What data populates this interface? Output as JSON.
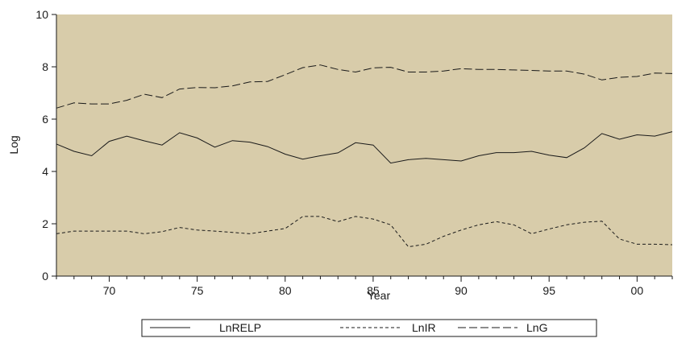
{
  "chart_data": {
    "type": "line",
    "xlabel": "Year",
    "ylabel": "Log",
    "xlim": [
      1967,
      2002
    ],
    "ylim": [
      0,
      10
    ],
    "x_ticks": [
      1970,
      1975,
      1980,
      1985,
      1990,
      1995,
      2000
    ],
    "x_tick_labels": [
      "70",
      "75",
      "80",
      "85",
      "90",
      "95",
      "00"
    ],
    "y_ticks": [
      0,
      2,
      4,
      6,
      8,
      10
    ],
    "y_tick_labels": [
      "0",
      "2",
      "4",
      "6",
      "8",
      "10"
    ],
    "plot_background": "#d8ccaa",
    "line_color": "#1a1a1a",
    "legend_position": "bottom",
    "x": [
      1967,
      1968,
      1969,
      1970,
      1971,
      1972,
      1973,
      1974,
      1975,
      1976,
      1977,
      1978,
      1979,
      1980,
      1981,
      1982,
      1983,
      1984,
      1985,
      1986,
      1987,
      1988,
      1989,
      1990,
      1991,
      1992,
      1993,
      1994,
      1995,
      1996,
      1997,
      1998,
      1999,
      2000,
      2001,
      2002
    ],
    "series": [
      {
        "name": "LnRELP",
        "line_style": "solid",
        "values": [
          5.05,
          4.77,
          4.6,
          5.15,
          5.35,
          5.17,
          5.01,
          5.48,
          5.28,
          4.93,
          5.18,
          5.12,
          4.95,
          4.66,
          4.47,
          4.6,
          4.71,
          5.1,
          5.01,
          4.32,
          4.45,
          4.5,
          4.45,
          4.4,
          4.6,
          4.72,
          4.72,
          4.77,
          4.62,
          4.53,
          4.9,
          5.45,
          5.23,
          5.4,
          5.35,
          5.52
        ]
      },
      {
        "name": "LnIR",
        "line_style": "short-dash",
        "values": [
          1.62,
          1.72,
          1.72,
          1.72,
          1.72,
          1.62,
          1.7,
          1.86,
          1.76,
          1.72,
          1.67,
          1.62,
          1.72,
          1.82,
          2.28,
          2.28,
          2.08,
          2.28,
          2.18,
          1.96,
          1.12,
          1.22,
          1.52,
          1.76,
          1.96,
          2.08,
          1.96,
          1.62,
          1.8,
          1.96,
          2.06,
          2.1,
          1.42,
          1.22,
          1.22,
          1.2
        ]
      },
      {
        "name": "LnG",
        "line_style": "long-dash",
        "values": [
          6.42,
          6.62,
          6.58,
          6.58,
          6.72,
          6.95,
          6.82,
          7.15,
          7.21,
          7.2,
          7.27,
          7.42,
          7.44,
          7.7,
          7.97,
          8.07,
          7.9,
          7.8,
          7.96,
          7.98,
          7.8,
          7.8,
          7.84,
          7.93,
          7.9,
          7.9,
          7.88,
          7.86,
          7.84,
          7.84,
          7.72,
          7.5,
          7.6,
          7.63,
          7.76,
          7.74
        ]
      }
    ]
  }
}
